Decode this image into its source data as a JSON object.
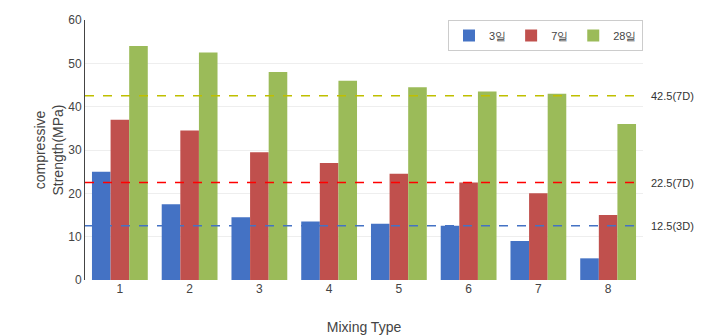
{
  "chart_data": {
    "type": "bar",
    "categories": [
      1,
      2,
      3,
      4,
      5,
      6,
      7,
      8
    ],
    "series": [
      {
        "name": "3일",
        "color": "#4472C4",
        "values": [
          25,
          17.5,
          14.5,
          13.5,
          13,
          12.5,
          9,
          5
        ]
      },
      {
        "name": "7일",
        "color": "#C0504D",
        "values": [
          37,
          34.5,
          29.5,
          27,
          24.5,
          22.5,
          20,
          15
        ]
      },
      {
        "name": "28일",
        "color": "#9BBB59",
        "values": [
          54,
          52.5,
          48,
          46,
          44.5,
          43.5,
          43,
          36
        ]
      }
    ],
    "annotations": [
      {
        "y": 42.5,
        "text": "42.5(7D)",
        "color": "#BFBF00",
        "line_style": "dashed"
      },
      {
        "y": 22.5,
        "text": "22.5(7D)",
        "color": "#FF0000",
        "line_style": "dashed"
      },
      {
        "y": 12.5,
        "text": "12.5(3D)",
        "color": "#4472C4",
        "line_style": "dashed"
      }
    ],
    "xlabel": "Mixing Type",
    "ylabel": "compressive\nStrength(MPa)",
    "ylim": [
      0,
      60
    ],
    "yticks": [
      0,
      10,
      20,
      30,
      40,
      50,
      60
    ],
    "grid": true,
    "legend": "upper right"
  }
}
